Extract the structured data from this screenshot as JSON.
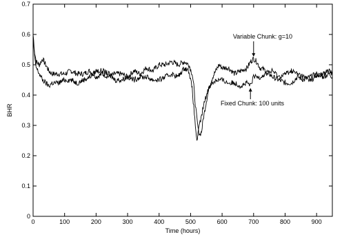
{
  "chart_data": {
    "type": "line",
    "title": "",
    "xlabel": "Time (hours)",
    "ylabel": "BHR",
    "xlim": [
      0,
      950
    ],
    "ylim": [
      0,
      0.7
    ],
    "xticks": [
      0,
      100,
      200,
      300,
      400,
      500,
      600,
      700,
      800,
      900
    ],
    "yticks": [
      0,
      0.1,
      0.2,
      0.3,
      0.4,
      0.5,
      0.6,
      0.7
    ],
    "xtick_labels": [
      "0",
      "100",
      "200",
      "300",
      "400",
      "500",
      "600",
      "700",
      "800",
      "900"
    ],
    "ytick_labels": [
      "0",
      "0.1",
      "0.2",
      "0.3",
      "0.4",
      "0.5",
      "0.6",
      "0.7"
    ],
    "grid": false,
    "series": [
      {
        "name": "Variable Chunk: g=10",
        "x": [
          0,
          5,
          10,
          20,
          30,
          40,
          50,
          60,
          80,
          100,
          120,
          140,
          160,
          180,
          200,
          220,
          240,
          260,
          280,
          300,
          320,
          340,
          360,
          380,
          400,
          420,
          440,
          460,
          480,
          495,
          505,
          510,
          515,
          520,
          525,
          530,
          535,
          540,
          550,
          560,
          570,
          580,
          590,
          600,
          620,
          640,
          660,
          680,
          690,
          700,
          710,
          720,
          740,
          760,
          780,
          800,
          820,
          840,
          860,
          880,
          900,
          920,
          940,
          950
        ],
        "y": [
          0.6,
          0.54,
          0.51,
          0.5,
          0.52,
          0.5,
          0.48,
          0.47,
          0.47,
          0.47,
          0.48,
          0.47,
          0.47,
          0.48,
          0.46,
          0.47,
          0.46,
          0.47,
          0.47,
          0.46,
          0.48,
          0.47,
          0.49,
          0.48,
          0.5,
          0.5,
          0.51,
          0.5,
          0.51,
          0.5,
          0.47,
          0.43,
          0.37,
          0.32,
          0.28,
          0.27,
          0.28,
          0.32,
          0.38,
          0.43,
          0.46,
          0.48,
          0.5,
          0.49,
          0.49,
          0.47,
          0.48,
          0.49,
          0.51,
          0.52,
          0.51,
          0.49,
          0.48,
          0.46,
          0.45,
          0.44,
          0.44,
          0.46,
          0.45,
          0.46,
          0.47,
          0.46,
          0.47,
          0.46
        ]
      },
      {
        "name": "Fixed Chunk: 100 units",
        "x": [
          0,
          5,
          10,
          20,
          30,
          40,
          50,
          60,
          80,
          100,
          120,
          140,
          160,
          180,
          200,
          220,
          240,
          260,
          280,
          300,
          320,
          340,
          360,
          380,
          400,
          420,
          440,
          460,
          480,
          495,
          505,
          510,
          515,
          520,
          525,
          530,
          535,
          540,
          550,
          560,
          570,
          580,
          590,
          600,
          620,
          640,
          660,
          680,
          690,
          700,
          720,
          740,
          760,
          780,
          800,
          820,
          840,
          860,
          880,
          900,
          920,
          940,
          950
        ],
        "y": [
          0.59,
          0.52,
          0.49,
          0.47,
          0.45,
          0.44,
          0.43,
          0.44,
          0.44,
          0.45,
          0.45,
          0.44,
          0.45,
          0.46,
          0.48,
          0.48,
          0.47,
          0.45,
          0.45,
          0.46,
          0.45,
          0.46,
          0.46,
          0.45,
          0.45,
          0.46,
          0.47,
          0.46,
          0.49,
          0.48,
          0.42,
          0.36,
          0.3,
          0.25,
          0.28,
          0.31,
          0.33,
          0.36,
          0.4,
          0.43,
          0.44,
          0.45,
          0.45,
          0.45,
          0.44,
          0.44,
          0.43,
          0.44,
          0.43,
          0.46,
          0.46,
          0.47,
          0.48,
          0.46,
          0.47,
          0.48,
          0.47,
          0.46,
          0.45,
          0.46,
          0.47,
          0.48,
          0.47
        ]
      }
    ],
    "annotations": [
      {
        "text": "Variable Chunk: g=10",
        "arrow_to": [
          700,
          0.52
        ]
      },
      {
        "text": "Fixed Chunk: 100 units",
        "arrow_to": [
          690,
          0.43
        ]
      }
    ]
  }
}
